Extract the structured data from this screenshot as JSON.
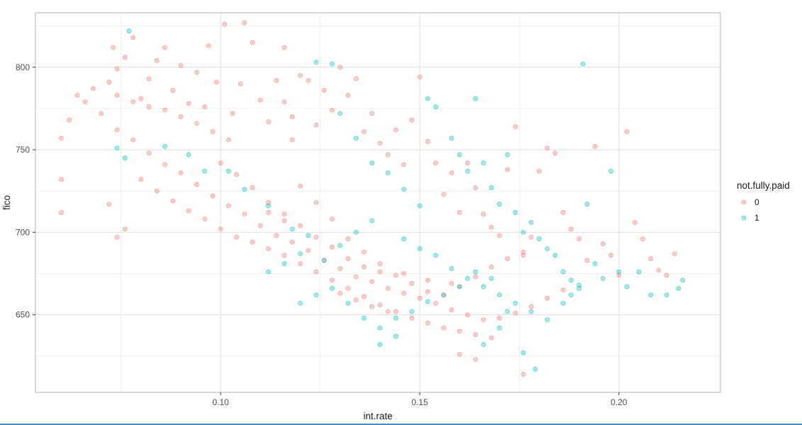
{
  "chart_data": {
    "type": "scatter",
    "title": "",
    "xlabel": "int.rate",
    "ylabel": "fico",
    "xlim": [
      0.0535,
      0.2255
    ],
    "ylim": [
      603,
      833
    ],
    "x_ticks": [
      0.1,
      0.15,
      0.2
    ],
    "x_tick_labels": [
      "0.10",
      "0.15",
      "0.20"
    ],
    "x_minor_ticks": [
      0.075,
      0.125,
      0.175
    ],
    "y_ticks": [
      650,
      700,
      750,
      800
    ],
    "y_tick_labels": [
      "650",
      "700",
      "750",
      "800"
    ],
    "y_minor_ticks": [
      625,
      675,
      725,
      775,
      825
    ],
    "grid": true,
    "legend": {
      "title": "not.fully.paid",
      "position": "right"
    },
    "series": [
      {
        "name": "0",
        "color": "#F8766D",
        "points": [
          [
            0.06,
            757
          ],
          [
            0.06,
            732
          ],
          [
            0.06,
            712
          ],
          [
            0.062,
            768
          ],
          [
            0.064,
            783
          ],
          [
            0.066,
            779
          ],
          [
            0.068,
            787
          ],
          [
            0.07,
            772
          ],
          [
            0.072,
            791
          ],
          [
            0.073,
            812
          ],
          [
            0.074,
            799
          ],
          [
            0.076,
            806
          ],
          [
            0.078,
            818
          ],
          [
            0.08,
            781
          ],
          [
            0.082,
            793
          ],
          [
            0.084,
            804
          ],
          [
            0.086,
            812
          ],
          [
            0.088,
            786
          ],
          [
            0.09,
            801
          ],
          [
            0.092,
            778
          ],
          [
            0.094,
            797
          ],
          [
            0.096,
            776
          ],
          [
            0.097,
            813
          ],
          [
            0.099,
            791
          ],
          [
            0.101,
            826
          ],
          [
            0.103,
            772
          ],
          [
            0.105,
            790
          ],
          [
            0.106,
            827
          ],
          [
            0.108,
            815
          ],
          [
            0.11,
            780
          ],
          [
            0.112,
            767
          ],
          [
            0.114,
            792
          ],
          [
            0.116,
            812
          ],
          [
            0.118,
            770
          ],
          [
            0.12,
            795
          ],
          [
            0.122,
            792
          ],
          [
            0.124,
            765
          ],
          [
            0.126,
            786
          ],
          [
            0.128,
            774
          ],
          [
            0.13,
            800
          ],
          [
            0.132,
            783
          ],
          [
            0.134,
            793
          ],
          [
            0.136,
            761
          ],
          [
            0.138,
            772
          ],
          [
            0.14,
            754
          ],
          [
            0.142,
            747
          ],
          [
            0.144,
            762
          ],
          [
            0.146,
            741
          ],
          [
            0.148,
            768
          ],
          [
            0.15,
            794
          ],
          [
            0.152,
            755
          ],
          [
            0.154,
            742
          ],
          [
            0.156,
            723
          ],
          [
            0.158,
            736
          ],
          [
            0.16,
            712
          ],
          [
            0.162,
            742
          ],
          [
            0.164,
            727
          ],
          [
            0.166,
            711
          ],
          [
            0.168,
            703
          ],
          [
            0.17,
            698
          ],
          [
            0.172,
            738
          ],
          [
            0.174,
            764
          ],
          [
            0.176,
            688
          ],
          [
            0.178,
            697
          ],
          [
            0.18,
            737
          ],
          [
            0.182,
            751
          ],
          [
            0.184,
            748
          ],
          [
            0.186,
            712
          ],
          [
            0.188,
            702
          ],
          [
            0.19,
            696
          ],
          [
            0.192,
            683
          ],
          [
            0.194,
            752
          ],
          [
            0.196,
            693
          ],
          [
            0.198,
            686
          ],
          [
            0.2,
            674
          ],
          [
            0.202,
            761
          ],
          [
            0.204,
            706
          ],
          [
            0.206,
            696
          ],
          [
            0.208,
            684
          ],
          [
            0.21,
            677
          ],
          [
            0.212,
            674
          ],
          [
            0.214,
            687
          ],
          [
            0.074,
            762
          ],
          [
            0.078,
            756
          ],
          [
            0.082,
            748
          ],
          [
            0.086,
            741
          ],
          [
            0.09,
            736
          ],
          [
            0.094,
            729
          ],
          [
            0.098,
            722
          ],
          [
            0.102,
            716
          ],
          [
            0.106,
            711
          ],
          [
            0.11,
            704
          ],
          [
            0.114,
            698
          ],
          [
            0.118,
            694
          ],
          [
            0.122,
            689
          ],
          [
            0.126,
            683
          ],
          [
            0.13,
            678
          ],
          [
            0.134,
            673
          ],
          [
            0.138,
            670
          ],
          [
            0.142,
            666
          ],
          [
            0.146,
            663
          ],
          [
            0.15,
            660
          ],
          [
            0.154,
            657
          ],
          [
            0.158,
            653
          ],
          [
            0.162,
            650
          ],
          [
            0.166,
            647
          ],
          [
            0.17,
            648
          ],
          [
            0.174,
            651
          ],
          [
            0.178,
            655
          ],
          [
            0.182,
            660
          ],
          [
            0.186,
            665
          ],
          [
            0.12,
            728
          ],
          [
            0.124,
            718
          ],
          [
            0.128,
            708
          ],
          [
            0.132,
            696
          ],
          [
            0.136,
            688
          ],
          [
            0.14,
            681
          ],
          [
            0.144,
            674
          ],
          [
            0.148,
            669
          ],
          [
            0.152,
            664
          ],
          [
            0.156,
            662
          ],
          [
            0.16,
            667
          ],
          [
            0.164,
            673
          ],
          [
            0.168,
            679
          ],
          [
            0.172,
            684
          ],
          [
            0.176,
            686
          ],
          [
            0.1,
            742
          ],
          [
            0.104,
            735
          ],
          [
            0.108,
            727
          ],
          [
            0.112,
            718
          ],
          [
            0.116,
            711
          ],
          [
            0.12,
            704
          ],
          [
            0.124,
            697
          ],
          [
            0.128,
            691
          ],
          [
            0.132,
            684
          ],
          [
            0.136,
            679
          ],
          [
            0.14,
            676
          ],
          [
            0.146,
            675
          ],
          [
            0.152,
            671
          ],
          [
            0.158,
            669
          ],
          [
            0.08,
            732
          ],
          [
            0.084,
            725
          ],
          [
            0.088,
            719
          ],
          [
            0.092,
            713
          ],
          [
            0.096,
            708
          ],
          [
            0.1,
            702
          ],
          [
            0.104,
            697
          ],
          [
            0.108,
            694
          ],
          [
            0.112,
            690
          ],
          [
            0.116,
            686
          ],
          [
            0.12,
            681
          ],
          [
            0.124,
            676
          ],
          [
            0.128,
            671
          ],
          [
            0.132,
            666
          ],
          [
            0.136,
            661
          ],
          [
            0.14,
            656
          ],
          [
            0.144,
            652
          ],
          [
            0.148,
            648
          ],
          [
            0.152,
            645
          ],
          [
            0.156,
            642
          ],
          [
            0.16,
            640
          ],
          [
            0.164,
            638
          ],
          [
            0.168,
            636
          ],
          [
            0.176,
            614
          ],
          [
            0.16,
            626
          ],
          [
            0.164,
            623
          ],
          [
            0.076,
            702
          ],
          [
            0.074,
            697
          ],
          [
            0.072,
            717
          ],
          [
            0.112,
            712
          ],
          [
            0.116,
            707
          ],
          [
            0.13,
            663
          ],
          [
            0.134,
            659
          ],
          [
            0.138,
            655
          ],
          [
            0.142,
            652
          ],
          [
            0.116,
            779
          ],
          [
            0.118,
            756
          ],
          [
            0.102,
            756
          ],
          [
            0.098,
            761
          ],
          [
            0.094,
            766
          ],
          [
            0.09,
            770
          ],
          [
            0.086,
            774
          ],
          [
            0.082,
            776
          ],
          [
            0.078,
            779
          ],
          [
            0.074,
            783
          ]
        ]
      },
      {
        "name": "1",
        "color": "#00BFC4",
        "points": [
          [
            0.077,
            822
          ],
          [
            0.074,
            751
          ],
          [
            0.076,
            745
          ],
          [
            0.086,
            752
          ],
          [
            0.092,
            747
          ],
          [
            0.096,
            737
          ],
          [
            0.102,
            737
          ],
          [
            0.106,
            726
          ],
          [
            0.112,
            716
          ],
          [
            0.118,
            702
          ],
          [
            0.122,
            698
          ],
          [
            0.124,
            803
          ],
          [
            0.128,
            802
          ],
          [
            0.13,
            772
          ],
          [
            0.134,
            757
          ],
          [
            0.138,
            742
          ],
          [
            0.142,
            736
          ],
          [
            0.146,
            726
          ],
          [
            0.15,
            716
          ],
          [
            0.152,
            781
          ],
          [
            0.154,
            776
          ],
          [
            0.158,
            757
          ],
          [
            0.16,
            747
          ],
          [
            0.162,
            737
          ],
          [
            0.164,
            781
          ],
          [
            0.166,
            742
          ],
          [
            0.168,
            727
          ],
          [
            0.17,
            717
          ],
          [
            0.172,
            747
          ],
          [
            0.174,
            712
          ],
          [
            0.176,
            700
          ],
          [
            0.178,
            706
          ],
          [
            0.18,
            696
          ],
          [
            0.182,
            690
          ],
          [
            0.184,
            686
          ],
          [
            0.186,
            676
          ],
          [
            0.188,
            671
          ],
          [
            0.19,
            666
          ],
          [
            0.191,
            802
          ],
          [
            0.192,
            717
          ],
          [
            0.194,
            681
          ],
          [
            0.196,
            672
          ],
          [
            0.198,
            737
          ],
          [
            0.2,
            676
          ],
          [
            0.202,
            667
          ],
          [
            0.205,
            676
          ],
          [
            0.208,
            662
          ],
          [
            0.212,
            662
          ],
          [
            0.215,
            666
          ],
          [
            0.216,
            671
          ],
          [
            0.12,
            657
          ],
          [
            0.124,
            662
          ],
          [
            0.128,
            666
          ],
          [
            0.132,
            657
          ],
          [
            0.136,
            648
          ],
          [
            0.14,
            642
          ],
          [
            0.144,
            648
          ],
          [
            0.148,
            652
          ],
          [
            0.152,
            658
          ],
          [
            0.156,
            662
          ],
          [
            0.16,
            667
          ],
          [
            0.164,
            676
          ],
          [
            0.168,
            672
          ],
          [
            0.172,
            652
          ],
          [
            0.176,
            627
          ],
          [
            0.179,
            617
          ],
          [
            0.14,
            632
          ],
          [
            0.144,
            637
          ],
          [
            0.166,
            632
          ],
          [
            0.17,
            642
          ],
          [
            0.112,
            676
          ],
          [
            0.116,
            681
          ],
          [
            0.12,
            687
          ],
          [
            0.126,
            683
          ],
          [
            0.13,
            692
          ],
          [
            0.134,
            700
          ],
          [
            0.138,
            707
          ],
          [
            0.146,
            696
          ],
          [
            0.15,
            690
          ],
          [
            0.154,
            686
          ],
          [
            0.158,
            678
          ],
          [
            0.162,
            672
          ],
          [
            0.166,
            667
          ],
          [
            0.17,
            662
          ],
          [
            0.174,
            657
          ],
          [
            0.178,
            652
          ],
          [
            0.182,
            647
          ],
          [
            0.186,
            657
          ],
          [
            0.188,
            662
          ],
          [
            0.19,
            668
          ]
        ]
      }
    ]
  }
}
